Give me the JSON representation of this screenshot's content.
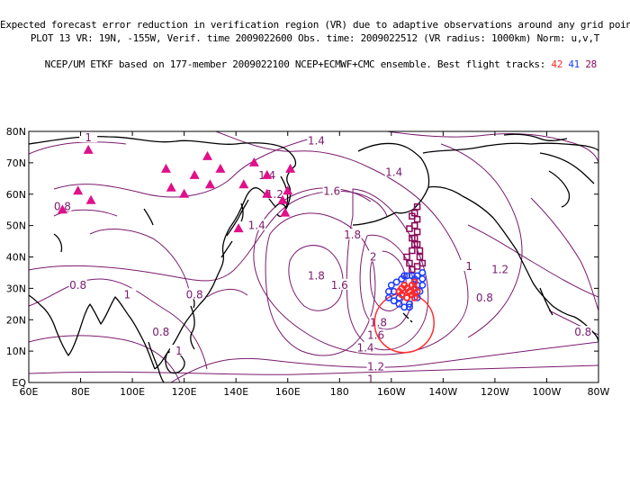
{
  "header": {
    "line1": "Expected forecast error reduction in verification region (VR) due to adaptive observations around any grid point.",
    "line2": "PLOT 13 VR: 19N, -155W, Verif. time 2009022600 Obs. time: 2009022512 (VR radius: 1000km) Norm: u,v,T",
    "line3_prefix": "NCEP/UM ETKF based on 177-member 2009022100 NCEP+ECMWF+CMC ensemble. Best flight tracks:",
    "track_a": "42",
    "track_b": "41",
    "track_c": "28"
  },
  "colors": {
    "track_a": "#ff2a2a",
    "track_b": "#1a3cff",
    "track_c": "#8a0a5a",
    "contour": "#7a1a6e",
    "triangles": "#e0108a",
    "coast": "#000000"
  },
  "axes": {
    "lat_labels": [
      "80N",
      "70N",
      "60N",
      "50N",
      "40N",
      "30N",
      "20N",
      "10N",
      "EQ"
    ],
    "lon_labels": [
      "60E",
      "80E",
      "100E",
      "120E",
      "140E",
      "160E",
      "180",
      "160W",
      "140W",
      "120W",
      "100W",
      "80W"
    ],
    "lat_range": [
      0,
      80
    ],
    "lon_range": [
      60,
      280
    ]
  },
  "contour_labels": [
    {
      "text": "1.4",
      "lon": 171,
      "lat": 77
    },
    {
      "text": "1.4",
      "lon": 201,
      "lat": 67
    },
    {
      "text": "1.4",
      "lon": 152,
      "lat": 66
    },
    {
      "text": "1.2",
      "lon": 155,
      "lat": 60
    },
    {
      "text": "1.6",
      "lon": 177,
      "lat": 61
    },
    {
      "text": "0.8",
      "lon": 73,
      "lat": 56
    },
    {
      "text": "1.4",
      "lon": 148,
      "lat": 50
    },
    {
      "text": "1.8",
      "lon": 185,
      "lat": 47
    },
    {
      "text": "2",
      "lon": 193,
      "lat": 40
    },
    {
      "text": "1.8",
      "lon": 171,
      "lat": 34
    },
    {
      "text": "1.6",
      "lon": 180,
      "lat": 31
    },
    {
      "text": "0.8",
      "lon": 79,
      "lat": 31
    },
    {
      "text": "1",
      "lon": 98,
      "lat": 28
    },
    {
      "text": "0.8",
      "lon": 124,
      "lat": 28
    },
    {
      "text": "1.2",
      "lon": 242,
      "lat": 36
    },
    {
      "text": "1",
      "lon": 230,
      "lat": 37
    },
    {
      "text": "0.8",
      "lon": 236,
      "lat": 27
    },
    {
      "text": "0.8",
      "lon": 111,
      "lat": 16
    },
    {
      "text": "1",
      "lon": 118,
      "lat": 10
    },
    {
      "text": "1.4",
      "lon": 190,
      "lat": 11
    },
    {
      "text": "1.6",
      "lon": 194,
      "lat": 15
    },
    {
      "text": "1.8",
      "lon": 195,
      "lat": 19
    },
    {
      "text": "1.2",
      "lon": 194,
      "lat": 5
    },
    {
      "text": "1",
      "lon": 192,
      "lat": 1
    },
    {
      "text": "0.8",
      "lon": 274,
      "lat": 16
    },
    {
      "text": "1",
      "lon": 83,
      "lat": 78
    }
  ],
  "triangles": [
    [
      83,
      74
    ],
    [
      79,
      61
    ],
    [
      84,
      58
    ],
    [
      73,
      55
    ],
    [
      113,
      68
    ],
    [
      115,
      62
    ],
    [
      120,
      60
    ],
    [
      124,
      66
    ],
    [
      129,
      72
    ],
    [
      130,
      63
    ],
    [
      134,
      68
    ],
    [
      143,
      63
    ],
    [
      147,
      70
    ],
    [
      152,
      60
    ],
    [
      152,
      66
    ],
    [
      158,
      58
    ],
    [
      160,
      61
    ],
    [
      161,
      68
    ],
    [
      159,
      54
    ],
    [
      141,
      49
    ]
  ],
  "track_c_points": [
    [
      -150,
      56
    ],
    [
      -151,
      54
    ],
    [
      -150,
      52
    ],
    [
      -151,
      50
    ],
    [
      -150,
      48
    ],
    [
      -151,
      46
    ],
    [
      -150,
      44
    ],
    [
      -149,
      42
    ],
    [
      -149,
      40
    ],
    [
      -148,
      38
    ],
    [
      -150,
      37
    ],
    [
      -152,
      36
    ],
    [
      -153,
      38
    ],
    [
      -154,
      40
    ],
    [
      -152,
      42
    ],
    [
      -151,
      44
    ],
    [
      -152,
      46
    ],
    [
      -153,
      49
    ],
    [
      -152,
      53
    ]
  ],
  "track_b_points": [
    [
      -148,
      35
    ],
    [
      -150,
      34
    ],
    [
      -152,
      34
    ],
    [
      -154,
      34
    ],
    [
      -156,
      33
    ],
    [
      -158,
      32
    ],
    [
      -160,
      31
    ],
    [
      -161,
      29
    ],
    [
      -161,
      27
    ],
    [
      -159,
      26
    ],
    [
      -157,
      25
    ],
    [
      -155,
      24
    ],
    [
      -153,
      25
    ],
    [
      -150,
      27
    ],
    [
      -149,
      29
    ],
    [
      -148,
      31
    ],
    [
      -148,
      33
    ],
    [
      -159,
      29
    ],
    [
      -155,
      34
    ],
    [
      -151,
      33
    ],
    [
      -157,
      27
    ],
    [
      -150,
      31
    ],
    [
      -153,
      24
    ]
  ],
  "track_a_points": [
    [
      -151,
      32
    ],
    [
      -152,
      31
    ],
    [
      -154,
      30
    ],
    [
      -156,
      30
    ],
    [
      -157,
      29
    ],
    [
      -156,
      28
    ],
    [
      -154,
      27
    ],
    [
      -152,
      28
    ],
    [
      -150,
      29
    ],
    [
      -151,
      30
    ],
    [
      -155,
      31
    ],
    [
      -153,
      29
    ],
    [
      -151,
      27
    ]
  ],
  "vr_circle": {
    "center_lon": -155,
    "center_lat": 19
  }
}
